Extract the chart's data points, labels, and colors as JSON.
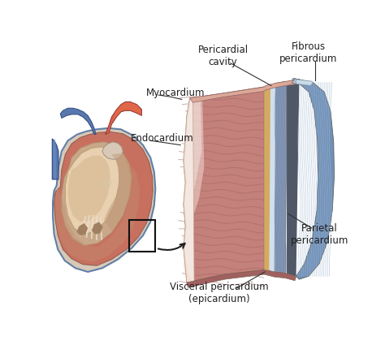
{
  "background_color": "#ffffff",
  "labels": {
    "pericardial_cavity": "Pericardial\ncavity",
    "fibrous_pericardium": "Fibrous\npericardium",
    "myocardium": "Myocardium",
    "endocardium": "Endocardium",
    "visceral_pericardium": "Visceral pericardium\n(epicardium)",
    "parietal_pericardium": "Parietal\npericardium"
  },
  "label_fontsize": 8.5,
  "colors": {
    "muscle_main": "#c4807a",
    "muscle_dark": "#a06060",
    "muscle_light": "#dba898",
    "muscle_highlight": "#f0d0c8",
    "muscle_shadow": "#b87068",
    "endocardium_color": "#f0e0d8",
    "epicardium_color": "#d4aa60",
    "parietal_color": "#8898b8",
    "parietal_dark": "#607090",
    "fibrous_color": "#7090b8",
    "fibrous_light": "#a8c0d8",
    "fibrous_texture": "#c0d4e8",
    "dark_layer": "#505868",
    "cavity_color": "#d0e0ee",
    "heart_red_bright": "#e06848",
    "heart_red": "#c85848",
    "heart_dark_red": "#a03828",
    "heart_orange": "#d08060",
    "heart_blue": "#5878b0",
    "heart_blue_light": "#7898c8",
    "heart_body": "#c87060",
    "heart_body_light": "#d89080",
    "heart_interior": "#c8a888",
    "heart_tan": "#d4b890",
    "heart_beige": "#e8d0b0",
    "outline": "#505050",
    "arrow_color": "#202020"
  }
}
